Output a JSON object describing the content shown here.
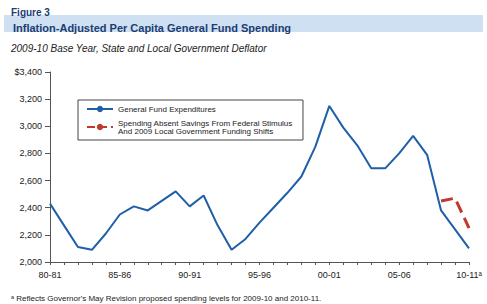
{
  "chart_data": {
    "type": "line",
    "figure_label": "Figure 3",
    "title": "Inflation-Adjusted Per Capita General Fund Spending",
    "subtitle": "2009-10 Base Year, State and Local Government Deflator",
    "footnote": "ᵃ Reflects Governor's May Revision proposed spending levels for 2009-10 and 2010-11.",
    "categories": [
      "80-81",
      null,
      null,
      null,
      null,
      "85-86",
      null,
      null,
      null,
      null,
      "90-91",
      null,
      null,
      null,
      null,
      "95-96",
      null,
      null,
      null,
      null,
      "00-01",
      null,
      null,
      null,
      null,
      "05-06",
      null,
      null,
      null,
      null,
      "10-11ᵃ"
    ],
    "series": [
      {
        "name": "General Fund Expenditures",
        "color": "#1f5fa8",
        "line_style": "solid",
        "marker": "none",
        "values": [
          2430,
          2270,
          2110,
          2090,
          2210,
          2350,
          2410,
          2380,
          2450,
          2520,
          2410,
          2490,
          2270,
          2090,
          2170,
          2290,
          2400,
          2510,
          2630,
          2850,
          3150,
          2990,
          2860,
          2690,
          2690,
          2800,
          2930,
          2790,
          2380,
          2240,
          2100
        ]
      },
      {
        "name": "Spending Absent Savings From Federal Stimulus And 2009 Local Government Funding Shifts",
        "color": "#c0392b",
        "line_style": "dashed",
        "marker": "none",
        "values": [
          null,
          null,
          null,
          null,
          null,
          null,
          null,
          null,
          null,
          null,
          null,
          null,
          null,
          null,
          null,
          null,
          null,
          null,
          null,
          null,
          null,
          null,
          null,
          null,
          null,
          null,
          null,
          null,
          2450,
          2470,
          2250
        ]
      }
    ],
    "ylim": [
      2000,
      3400
    ],
    "yticks": [
      {
        "value": 2000,
        "label": "2,000"
      },
      {
        "value": 2200,
        "label": "2,200"
      },
      {
        "value": 2400,
        "label": "2,400"
      },
      {
        "value": 2600,
        "label": "2,600"
      },
      {
        "value": 2800,
        "label": "2,800"
      },
      {
        "value": 3000,
        "label": "3,000"
      },
      {
        "value": 3200,
        "label": "3,200"
      },
      {
        "value": 3400,
        "label": "$3,400"
      }
    ],
    "grid": false,
    "legend": "upper left"
  }
}
